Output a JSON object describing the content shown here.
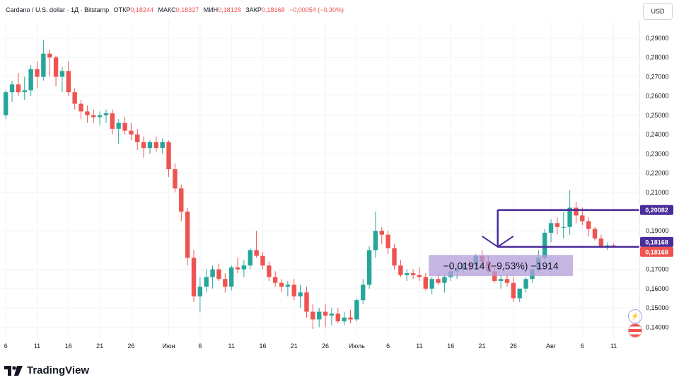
{
  "header": {
    "symbol": "Cardano / U.S. dollar · 1Д · Bitstamp",
    "open_label": "ОТКР",
    "open_value": "0,18244",
    "high_label": "МАКС",
    "high_value": "0,18327",
    "low_label": "МИН",
    "low_value": "0,18128",
    "close_label": "ЗАКР",
    "close_value": "0,18168",
    "change_value": "−0,00054 (−0,30%)"
  },
  "currency_button": "USD",
  "logo_text": "TradingView",
  "colors": {
    "up": "#26a69a",
    "down": "#ef5350",
    "annotation": "#4a2c9a",
    "measure_fill": "#b39ddb"
  },
  "icons": [
    "flash-icon",
    "us-flag-icon"
  ],
  "chart_data": {
    "type": "candlestick",
    "ylim": [
      0.135,
      0.295
    ],
    "y_ticks": [
      "0,29000",
      "0,28000",
      "0,27000",
      "0,26000",
      "0,25000",
      "0,24000",
      "0,23000",
      "0,22000",
      "0,21000",
      "0,19000",
      "0,17000",
      "0,16000",
      "0,15000",
      "0,14000"
    ],
    "y_tick_values": [
      0.29,
      0.28,
      0.27,
      0.26,
      0.25,
      0.24,
      0.23,
      0.22,
      0.21,
      0.19,
      0.17,
      0.16,
      0.15,
      0.14
    ],
    "x_ticks": [
      {
        "label": "6",
        "i": 0
      },
      {
        "label": "11",
        "i": 5
      },
      {
        "label": "16",
        "i": 10
      },
      {
        "label": "21",
        "i": 15
      },
      {
        "label": "26",
        "i": 20
      },
      {
        "label": "Июн",
        "i": 26
      },
      {
        "label": "6",
        "i": 31
      },
      {
        "label": "11",
        "i": 36
      },
      {
        "label": "16",
        "i": 41
      },
      {
        "label": "21",
        "i": 46
      },
      {
        "label": "26",
        "i": 51
      },
      {
        "label": "Июль",
        "i": 56
      },
      {
        "label": "6",
        "i": 61
      },
      {
        "label": "11",
        "i": 66
      },
      {
        "label": "16",
        "i": 71
      },
      {
        "label": "21",
        "i": 76
      },
      {
        "label": "26",
        "i": 81
      },
      {
        "label": "Авг",
        "i": 87
      },
      {
        "label": "6",
        "i": 92
      },
      {
        "label": "11",
        "i": 97
      }
    ],
    "candles": [
      [
        0.25,
        0.263,
        0.248,
        0.262
      ],
      [
        0.262,
        0.268,
        0.257,
        0.266
      ],
      [
        0.266,
        0.272,
        0.26,
        0.262
      ],
      [
        0.262,
        0.27,
        0.258,
        0.263
      ],
      [
        0.263,
        0.276,
        0.26,
        0.274
      ],
      [
        0.274,
        0.278,
        0.264,
        0.27
      ],
      [
        0.27,
        0.289,
        0.268,
        0.282
      ],
      [
        0.282,
        0.284,
        0.27,
        0.28
      ],
      [
        0.28,
        0.281,
        0.265,
        0.27
      ],
      [
        0.27,
        0.275,
        0.262,
        0.273
      ],
      [
        0.273,
        0.278,
        0.26,
        0.262
      ],
      [
        0.262,
        0.264,
        0.253,
        0.256
      ],
      [
        0.256,
        0.258,
        0.248,
        0.252
      ],
      [
        0.252,
        0.255,
        0.246,
        0.25
      ],
      [
        0.25,
        0.253,
        0.246,
        0.249
      ],
      [
        0.249,
        0.252,
        0.245,
        0.25
      ],
      [
        0.25,
        0.253,
        0.246,
        0.251
      ],
      [
        0.251,
        0.253,
        0.24,
        0.243
      ],
      [
        0.243,
        0.248,
        0.235,
        0.246
      ],
      [
        0.246,
        0.249,
        0.24,
        0.242
      ],
      [
        0.242,
        0.246,
        0.237,
        0.24
      ],
      [
        0.24,
        0.243,
        0.232,
        0.236
      ],
      [
        0.236,
        0.239,
        0.228,
        0.233
      ],
      [
        0.233,
        0.237,
        0.23,
        0.236
      ],
      [
        0.236,
        0.239,
        0.231,
        0.233
      ],
      [
        0.233,
        0.238,
        0.23,
        0.236
      ],
      [
        0.236,
        0.237,
        0.218,
        0.222
      ],
      [
        0.222,
        0.225,
        0.21,
        0.212
      ],
      [
        0.212,
        0.214,
        0.195,
        0.2
      ],
      [
        0.2,
        0.202,
        0.172,
        0.176
      ],
      [
        0.176,
        0.18,
        0.153,
        0.156
      ],
      [
        0.156,
        0.166,
        0.148,
        0.161
      ],
      [
        0.161,
        0.17,
        0.158,
        0.166
      ],
      [
        0.166,
        0.172,
        0.16,
        0.17
      ],
      [
        0.17,
        0.173,
        0.164,
        0.165
      ],
      [
        0.165,
        0.168,
        0.158,
        0.161
      ],
      [
        0.161,
        0.172,
        0.159,
        0.171
      ],
      [
        0.171,
        0.176,
        0.168,
        0.17
      ],
      [
        0.17,
        0.175,
        0.166,
        0.172
      ],
      [
        0.172,
        0.181,
        0.17,
        0.18
      ],
      [
        0.18,
        0.19,
        0.176,
        0.177
      ],
      [
        0.177,
        0.179,
        0.17,
        0.172
      ],
      [
        0.172,
        0.174,
        0.164,
        0.166
      ],
      [
        0.166,
        0.169,
        0.161,
        0.163
      ],
      [
        0.163,
        0.165,
        0.158,
        0.161
      ],
      [
        0.161,
        0.164,
        0.156,
        0.162
      ],
      [
        0.162,
        0.165,
        0.154,
        0.156
      ],
      [
        0.156,
        0.162,
        0.15,
        0.158
      ],
      [
        0.158,
        0.161,
        0.145,
        0.148
      ],
      [
        0.148,
        0.152,
        0.139,
        0.144
      ],
      [
        0.144,
        0.15,
        0.14,
        0.148
      ],
      [
        0.148,
        0.152,
        0.14,
        0.146
      ],
      [
        0.146,
        0.15,
        0.141,
        0.147
      ],
      [
        0.147,
        0.15,
        0.142,
        0.143
      ],
      [
        0.143,
        0.148,
        0.141,
        0.145
      ],
      [
        0.145,
        0.149,
        0.142,
        0.144
      ],
      [
        0.144,
        0.155,
        0.143,
        0.154
      ],
      [
        0.154,
        0.165,
        0.152,
        0.162
      ],
      [
        0.162,
        0.182,
        0.16,
        0.18
      ],
      [
        0.18,
        0.2,
        0.176,
        0.19
      ],
      [
        0.19,
        0.192,
        0.183,
        0.188
      ],
      [
        0.188,
        0.19,
        0.178,
        0.181
      ],
      [
        0.181,
        0.183,
        0.17,
        0.172
      ],
      [
        0.172,
        0.175,
        0.166,
        0.167
      ],
      [
        0.167,
        0.17,
        0.164,
        0.168
      ],
      [
        0.168,
        0.17,
        0.165,
        0.167
      ],
      [
        0.167,
        0.171,
        0.164,
        0.166
      ],
      [
        0.166,
        0.168,
        0.159,
        0.16
      ],
      [
        0.16,
        0.166,
        0.157,
        0.165
      ],
      [
        0.165,
        0.168,
        0.162,
        0.163
      ],
      [
        0.163,
        0.167,
        0.158,
        0.166
      ],
      [
        0.166,
        0.172,
        0.164,
        0.169
      ],
      [
        0.169,
        0.172,
        0.165,
        0.17
      ],
      [
        0.17,
        0.174,
        0.168,
        0.173
      ],
      [
        0.173,
        0.175,
        0.169,
        0.172
      ],
      [
        0.172,
        0.178,
        0.17,
        0.177
      ],
      [
        0.177,
        0.18,
        0.172,
        0.174
      ],
      [
        0.174,
        0.177,
        0.168,
        0.169
      ],
      [
        0.169,
        0.171,
        0.163,
        0.164
      ],
      [
        0.164,
        0.167,
        0.16,
        0.165
      ],
      [
        0.165,
        0.168,
        0.161,
        0.163
      ],
      [
        0.163,
        0.166,
        0.153,
        0.155
      ],
      [
        0.155,
        0.16,
        0.153,
        0.16
      ],
      [
        0.16,
        0.166,
        0.158,
        0.165
      ],
      [
        0.165,
        0.17,
        0.163,
        0.17
      ],
      [
        0.17,
        0.18,
        0.168,
        0.176
      ],
      [
        0.176,
        0.191,
        0.174,
        0.189
      ],
      [
        0.189,
        0.196,
        0.184,
        0.194
      ],
      [
        0.194,
        0.197,
        0.188,
        0.192
      ],
      [
        0.192,
        0.2,
        0.186,
        0.192
      ],
      [
        0.192,
        0.211,
        0.188,
        0.202
      ],
      [
        0.202,
        0.205,
        0.194,
        0.198
      ],
      [
        0.198,
        0.202,
        0.193,
        0.195
      ],
      [
        0.195,
        0.197,
        0.187,
        0.191
      ],
      [
        0.191,
        0.192,
        0.185,
        0.186
      ],
      [
        0.186,
        0.188,
        0.181,
        0.182
      ],
      [
        0.182,
        0.184,
        0.18,
        0.1824
      ],
      [
        0.18244,
        0.18327,
        0.18128,
        0.18168
      ]
    ],
    "price_labels": [
      {
        "text": "0,20082",
        "value": 0.20082,
        "color": "#4a2c9a"
      },
      {
        "text": "0,18168",
        "value": 0.18168,
        "color": "#4a2c9a"
      },
      {
        "text": "0,18168",
        "value": 0.18168,
        "color": "#ef5350"
      }
    ],
    "measure_text": "−0,01914 (−9,53%) −1914",
    "annotation_range": {
      "high": 0.20082,
      "low": 0.18168
    }
  }
}
